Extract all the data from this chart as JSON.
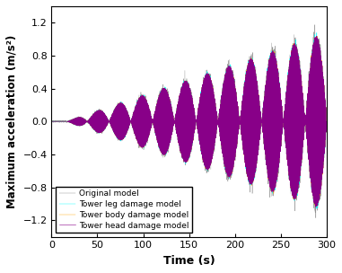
{
  "title": "",
  "xlabel": "Time (s)",
  "ylabel": "Maximum acceleration (m/s²)",
  "xlim": [
    0,
    300
  ],
  "ylim": [
    -1.4,
    1.4
  ],
  "yticks": [
    -1.2,
    -0.8,
    -0.4,
    0.0,
    0.4,
    0.8,
    1.2
  ],
  "xticks": [
    0,
    50,
    100,
    150,
    200,
    250,
    300
  ],
  "colors": {
    "original": "#909090",
    "tower_leg": "#00FFFF",
    "tower_body": "#FFA500",
    "tower_head": "#880088"
  },
  "legend": [
    "Original model",
    "Tower leg damage model",
    "Tower body damage model",
    "Tower head damage model"
  ],
  "carrier_freq": 1.5,
  "envelope_freq": 0.021,
  "envelope_growth": 0.0038,
  "envelope_start": 15,
  "envelope_max": 1.05,
  "noise_std_original": 0.08,
  "noise_std_leg": 0.025,
  "noise_std_body": 0.01,
  "dt": 0.05,
  "t_end": 300
}
